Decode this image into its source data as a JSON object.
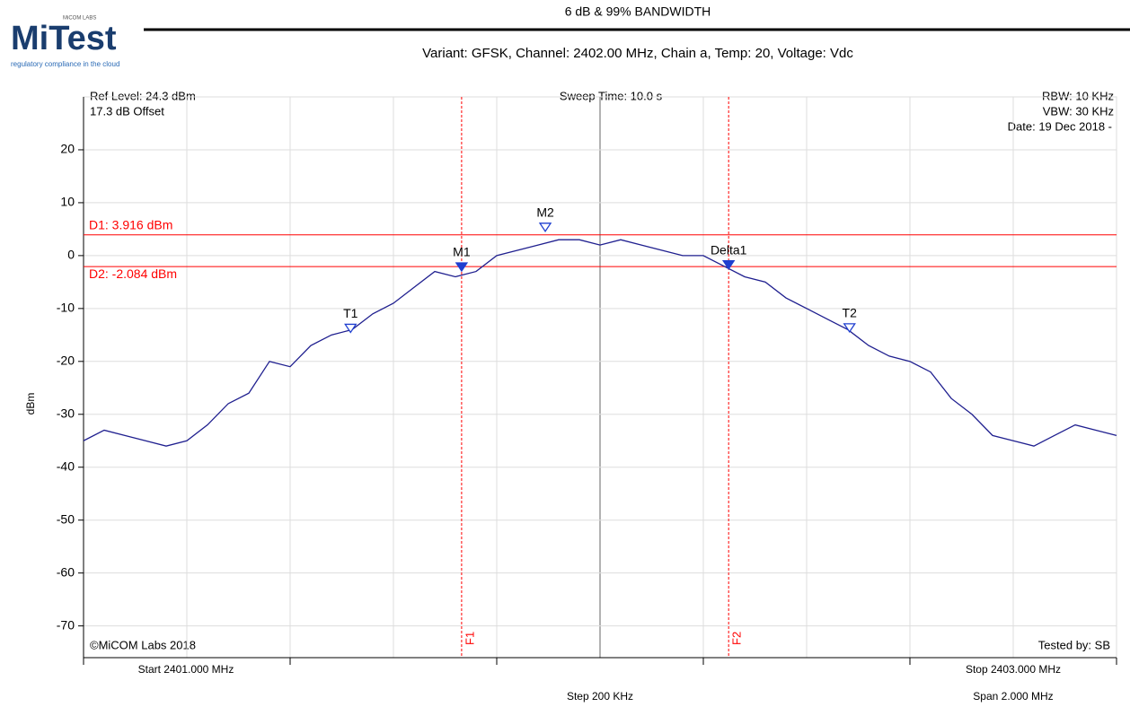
{
  "logo": {
    "name": "MiTest",
    "brand": "MiCOM LABS",
    "tagline": "regulatory compliance in the cloud"
  },
  "chart_data": {
    "type": "line",
    "title": "6 dB & 99% BANDWIDTH",
    "subtitle": "Variant: GFSK, Channel: 2402.00 MHz, Chain a, Temp: 20, Voltage:  Vdc",
    "y_label": "dBm",
    "info": {
      "ref_level": "Ref Level: 24.3 dBm",
      "offset": "17.3 dB Offset",
      "sweep": "Sweep Time: 10.0 s",
      "rbw": "RBW: 10 KHz",
      "vbw": "VBW: 30 KHz",
      "date": "Date: 19 Dec 2018 -",
      "copyright": "©MiCOM Labs 2018",
      "tested": "Tested by: SB",
      "start": "Start 2401.000 MHz",
      "stop": "Stop 2403.000 MHz",
      "step": "Step 200 KHz",
      "span": "Span 2.000 MHz"
    },
    "x": [
      2401,
      2401.04,
      2401.08,
      2401.12,
      2401.16,
      2401.2,
      2401.24,
      2401.28,
      2401.32,
      2401.36,
      2401.4,
      2401.44,
      2401.48,
      2401.52,
      2401.56,
      2401.6,
      2401.64,
      2401.68,
      2401.72,
      2401.76,
      2401.8,
      2401.84,
      2401.88,
      2401.92,
      2401.96,
      2402,
      2402.04,
      2402.08,
      2402.12,
      2402.16,
      2402.2,
      2402.24,
      2402.28,
      2402.32,
      2402.36,
      2402.4,
      2402.44,
      2402.48,
      2402.52,
      2402.56,
      2402.6,
      2402.64,
      2402.68,
      2402.72,
      2402.76,
      2402.8,
      2402.84,
      2402.88,
      2402.92,
      2402.96,
      2403
    ],
    "series": [
      {
        "name": "Trace",
        "color": "#1f1f8f",
        "values": [
          -35,
          -33,
          -34,
          -35,
          -36,
          -35,
          -32,
          -28,
          -26,
          -20,
          -21,
          -17,
          -15,
          -14,
          -11,
          -9,
          -6,
          -3,
          -4,
          -3,
          0,
          1,
          2,
          3,
          3,
          2,
          3,
          2,
          1,
          0,
          0,
          -2,
          -4,
          -5,
          -8,
          -10,
          -12,
          -14,
          -17,
          -19,
          -20,
          -22,
          -27,
          -30,
          -34,
          -35,
          -36,
          -34,
          -32,
          -33,
          -34
        ]
      }
    ],
    "xlim": [
      2401,
      2403
    ],
    "ylim": [
      -76,
      30
    ],
    "yticks": [
      20,
      10,
      0,
      -10,
      -20,
      -30,
      -40,
      -50,
      -60,
      -70
    ],
    "xticks": [
      2401.2,
      2401.4,
      2401.6,
      2401.8,
      2402,
      2402.2,
      2402.4,
      2402.6,
      2402.8
    ],
    "grid": true,
    "hlines": [
      {
        "value": 3.916,
        "label": "D1: 3.916 dBm",
        "color": "#ff0000"
      },
      {
        "value": -2.084,
        "label": "D2: -2.084 dBm",
        "color": "#ff0000"
      }
    ],
    "vlines": [
      {
        "value": 2401.732,
        "label": "F1",
        "color": "#ff0000"
      },
      {
        "value": 2402.249,
        "label": "F2",
        "color": "#ff0000"
      }
    ],
    "markers": [
      {
        "label": "T1",
        "x": 2401.517,
        "y": -14,
        "filled": false
      },
      {
        "label": "M1",
        "x": 2401.732,
        "y": -2.4,
        "filled": true
      },
      {
        "label": "M2",
        "x": 2401.894,
        "y": 5.1,
        "filled": false
      },
      {
        "label": "Delta1",
        "x": 2402.249,
        "y": -2,
        "filled": true
      },
      {
        "label": "T2",
        "x": 2402.483,
        "y": -13.9,
        "filled": false
      }
    ]
  }
}
